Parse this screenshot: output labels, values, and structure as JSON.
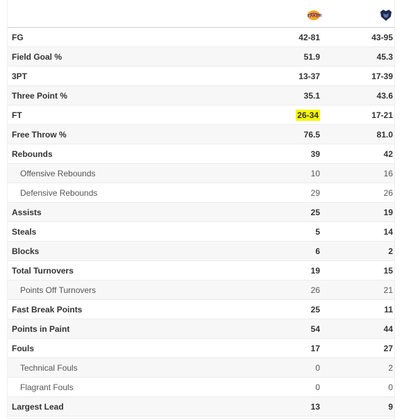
{
  "teams": {
    "home_logo": "lakers-logo",
    "away_logo": "grizzlies-logo"
  },
  "rows": [
    {
      "label": "FG",
      "lal": "42-81",
      "mem": "43-95"
    },
    {
      "label": "Field Goal %",
      "lal": "51.9",
      "mem": "45.3"
    },
    {
      "label": "3PT",
      "lal": "13-37",
      "mem": "17-39"
    },
    {
      "label": "Three Point %",
      "lal": "35.1",
      "mem": "43.6"
    },
    {
      "label": "FT",
      "lal": "26-34",
      "mem": "17-21"
    },
    {
      "label": "Free Throw %",
      "lal": "76.5",
      "mem": "81.0"
    },
    {
      "label": "Rebounds",
      "lal": "39",
      "mem": "42"
    },
    {
      "label": "Offensive Rebounds",
      "lal": "10",
      "mem": "16"
    },
    {
      "label": "Defensive Rebounds",
      "lal": "29",
      "mem": "26"
    },
    {
      "label": "Assists",
      "lal": "25",
      "mem": "19"
    },
    {
      "label": "Steals",
      "lal": "5",
      "mem": "14"
    },
    {
      "label": "Blocks",
      "lal": "6",
      "mem": "2"
    },
    {
      "label": "Total Turnovers",
      "lal": "19",
      "mem": "15"
    },
    {
      "label": "Points Off Turnovers",
      "lal": "26",
      "mem": "21"
    },
    {
      "label": "Fast Break Points",
      "lal": "25",
      "mem": "11"
    },
    {
      "label": "Points in Paint",
      "lal": "54",
      "mem": "44"
    },
    {
      "label": "Fouls",
      "lal": "17",
      "mem": "27"
    },
    {
      "label": "Technical Fouls",
      "lal": "0",
      "mem": "2"
    },
    {
      "label": "Flagrant Fouls",
      "lal": "0",
      "mem": "0"
    },
    {
      "label": "Largest Lead",
      "lal": "13",
      "mem": "9"
    }
  ],
  "colors": {
    "highlight": "#f6f600",
    "lakers_gold": "#f5a623",
    "lakers_purple": "#552583",
    "grizzlies_navy": "#1d2a4e",
    "grizzlies_blue": "#5d76a9"
  }
}
